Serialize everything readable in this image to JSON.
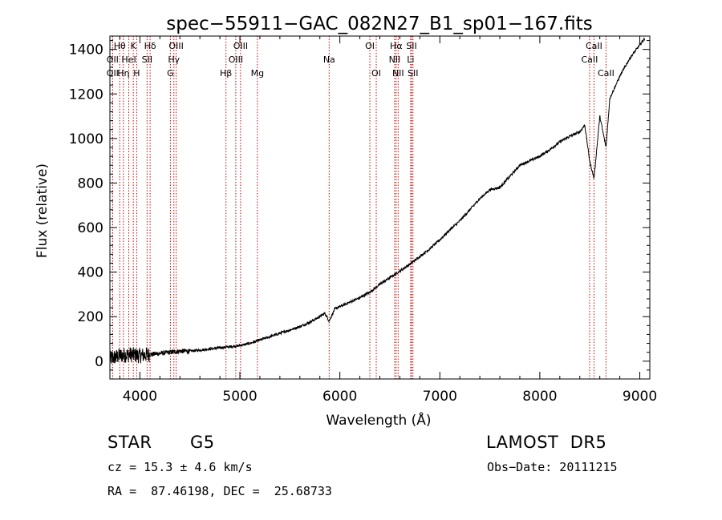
{
  "chart_data": {
    "type": "line",
    "title": "spec−55911−GAC_082N27_B1_sp01−167.fits",
    "xlabel": "Wavelength (Å)",
    "ylabel": "Flux (relative)",
    "xlim": [
      3700,
      9100
    ],
    "ylim": [
      -80,
      1460
    ],
    "xticks": [
      4000,
      5000,
      6000,
      7000,
      8000,
      9000
    ],
    "yticks": [
      0,
      200,
      400,
      600,
      800,
      1000,
      1200,
      1400
    ],
    "grid": false,
    "colors": {
      "spectrum": "#000000",
      "lines": "#cc0000"
    },
    "series": [
      {
        "x": [
          3700,
          3800,
          3900,
          4000,
          4100,
          4200,
          4300,
          4400,
          4500,
          4600,
          4700,
          4800,
          4900,
          5000,
          5100,
          5200,
          5300,
          5400,
          5500,
          5600,
          5700,
          5800,
          5850,
          5893,
          5950,
          6000,
          6100,
          6200,
          6300,
          6400,
          6500,
          6600,
          6700,
          6800,
          6900,
          7000,
          7100,
          7200,
          7300,
          7400,
          7500,
          7600,
          7700,
          7800,
          7900,
          8000,
          8100,
          8200,
          8300,
          8400,
          8450,
          8498,
          8542,
          8600,
          8662,
          8700,
          8800,
          8900,
          9000,
          9050
        ],
        "y": [
          10,
          25,
          30,
          25,
          30,
          35,
          40,
          45,
          45,
          50,
          55,
          60,
          65,
          70,
          80,
          95,
          110,
          125,
          140,
          155,
          175,
          200,
          215,
          180,
          235,
          245,
          265,
          285,
          310,
          345,
          375,
          405,
          435,
          470,
          505,
          545,
          590,
          630,
          680,
          730,
          770,
          780,
          830,
          880,
          900,
          920,
          950,
          985,
          1010,
          1030,
          1060,
          900,
          820,
          1100,
          960,
          1180,
          1280,
          1360,
          1420,
          1450
        ]
      }
    ],
    "line_markers": [
      {
        "label": "Hθ",
        "x": 3798,
        "row": 1
      },
      {
        "label": "OII",
        "x": 3727,
        "row": 2
      },
      {
        "label": "OII",
        "x": 3727,
        "row": 3
      },
      {
        "label": "Hη",
        "x": 3835,
        "row": 3
      },
      {
        "label": "HeI",
        "x": 3889,
        "row": 2
      },
      {
        "label": "K",
        "x": 3934,
        "row": 1
      },
      {
        "label": "H",
        "x": 3968,
        "row": 3
      },
      {
        "label": "SII",
        "x": 4072,
        "row": 2
      },
      {
        "label": "Hδ",
        "x": 4102,
        "row": 1
      },
      {
        "label": "OIII",
        "x": 4363,
        "row": 1
      },
      {
        "label": "Hγ",
        "x": 4340,
        "row": 2
      },
      {
        "label": "G",
        "x": 4305,
        "row": 3
      },
      {
        "label": "Hβ",
        "x": 4861,
        "row": 3
      },
      {
        "label": "OIII",
        "x": 4959,
        "row": 2
      },
      {
        "label": "OIII",
        "x": 5007,
        "row": 1
      },
      {
        "label": "Mg",
        "x": 5175,
        "row": 3
      },
      {
        "label": "Na",
        "x": 5893,
        "row": 2
      },
      {
        "label": "OI",
        "x": 6300,
        "row": 1
      },
      {
        "label": "OI",
        "x": 6364,
        "row": 3
      },
      {
        "label": "NII",
        "x": 6548,
        "row": 2
      },
      {
        "label": "Hα",
        "x": 6563,
        "row": 1
      },
      {
        "label": "NII",
        "x": 6583,
        "row": 3
      },
      {
        "label": "Li",
        "x": 6708,
        "row": 2
      },
      {
        "label": "SII",
        "x": 6717,
        "row": 1
      },
      {
        "label": "SII",
        "x": 6731,
        "row": 3
      },
      {
        "label": "CaII",
        "x": 8498,
        "row": 2
      },
      {
        "label": "CaII",
        "x": 8542,
        "row": 1
      },
      {
        "label": "CaII",
        "x": 8662,
        "row": 3
      }
    ]
  },
  "info": {
    "class": "STAR",
    "subclass": "G5",
    "survey": "LAMOST  DR5",
    "cz": "cz = 15.3 ± 4.6 km/s",
    "obs_date": "Obs−Date: 20111215",
    "coords": "RA =  87.46198, DEC =  25.68733"
  }
}
